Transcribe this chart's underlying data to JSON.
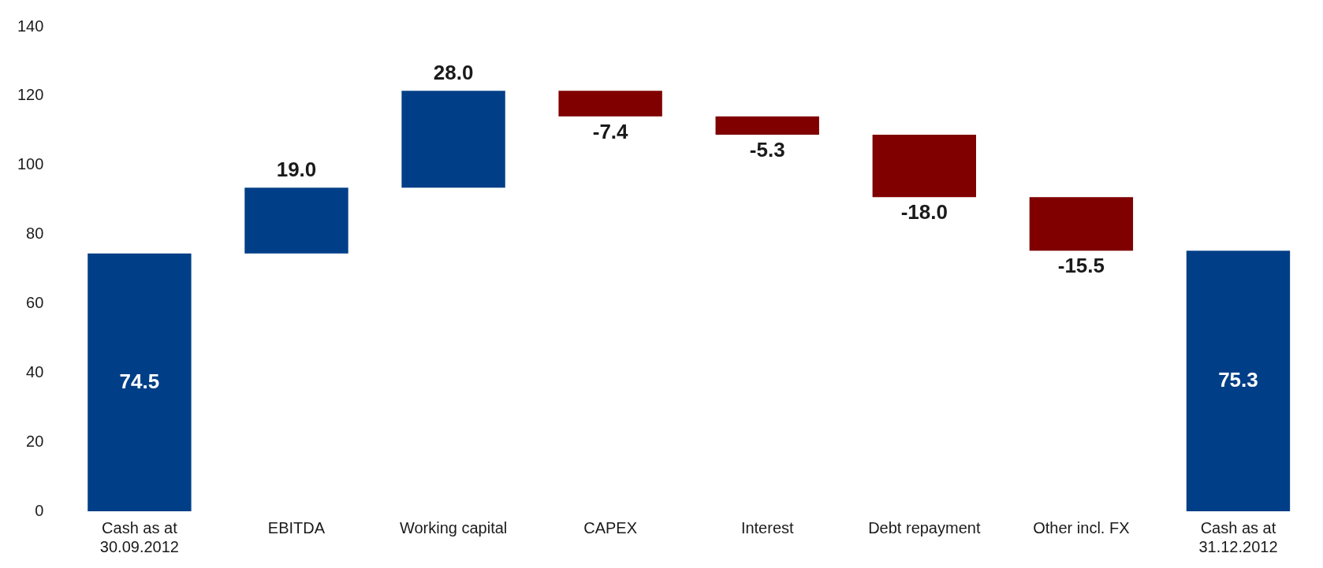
{
  "chart_data": {
    "type": "bar",
    "categories": [
      "Cash as at 30.09.2012",
      "EBITDA",
      "Working capital",
      "CAPEX",
      "Interest",
      "Debt repayment",
      "Other incl. FX",
      "Cash as at 31.12.2012"
    ],
    "values": [
      74.5,
      19.0,
      28.0,
      -7.4,
      -5.3,
      -18.0,
      -15.5,
      75.3
    ],
    "base": [
      0,
      74.5,
      93.5,
      121.5,
      114.1,
      108.8,
      90.8,
      0
    ],
    "colors": [
      "#003f87",
      "#003f87",
      "#003f87",
      "#800000",
      "#800000",
      "#800000",
      "#800000",
      "#003f87"
    ],
    "value_labels": [
      "74.5",
      "19.0",
      "28.0",
      "-7.4",
      "-5.3",
      "-18.0",
      "-15.5",
      "75.3"
    ],
    "ylim": [
      0,
      140
    ],
    "yticks": [
      0,
      20,
      40,
      60,
      80,
      100,
      120,
      140
    ],
    "grid": false
  }
}
